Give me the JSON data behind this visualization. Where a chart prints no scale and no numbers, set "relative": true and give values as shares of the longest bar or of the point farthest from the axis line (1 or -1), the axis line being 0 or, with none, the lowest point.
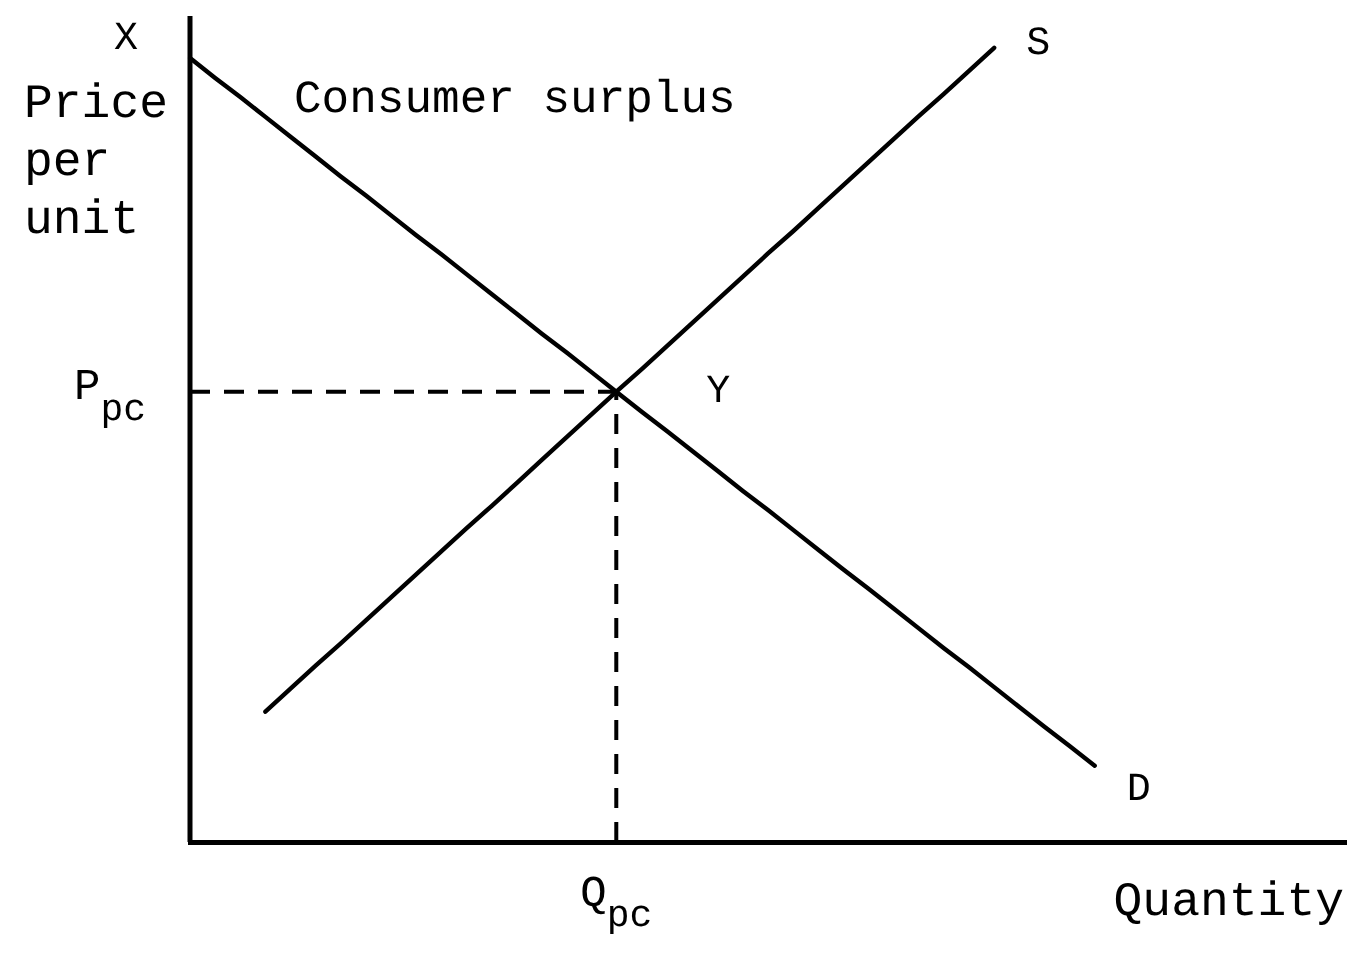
{
  "chart_data": {
    "type": "line",
    "relative": true,
    "xlabel": "Quantity",
    "ylabel": "Price per unit",
    "marker": "none",
    "line_style": "solid",
    "categories": [
      null,
      null,
      null,
      null,
      null,
      null,
      null,
      null,
      null,
      null,
      null,
      null,
      null,
      null,
      null,
      null,
      null,
      null,
      null,
      null,
      null,
      null,
      null,
      null,
      null,
      null,
      null,
      null,
      null,
      null,
      null,
      null,
      null,
      null,
      null,
      null,
      null,
      null,
      null,
      null,
      null,
      null,
      null,
      null,
      null,
      null,
      null
    ],
    "series": [
      {
        "name": "D",
        "color": "#000000",
        "values": [
          0.987,
          0.962,
          0.938,
          0.913,
          0.888,
          0.863,
          0.838,
          0.814,
          0.789,
          0.764,
          0.74,
          0.715,
          0.69,
          0.665,
          0.64,
          0.616,
          0.591,
          0.566,
          0.541,
          0.517,
          0.492,
          0.467,
          0.442,
          0.418,
          0.393,
          0.368,
          0.343,
          0.319,
          0.294,
          0.269,
          0.244,
          0.22,
          0.195,
          0.17,
          0.145,
          0.121,
          0.096,
          null,
          null,
          null,
          null,
          null,
          null,
          null,
          null,
          null,
          null
        ]
      },
      {
        "name": "S",
        "color": "#000000",
        "values": [
          null,
          null,
          null,
          0.164,
          0.193,
          0.222,
          0.25,
          0.279,
          0.308,
          0.337,
          0.366,
          0.395,
          0.423,
          0.452,
          0.481,
          0.51,
          0.539,
          0.568,
          0.596,
          0.625,
          0.654,
          0.683,
          0.712,
          0.741,
          0.769,
          0.798,
          0.827,
          0.856,
          0.885,
          0.914,
          0.942,
          0.971,
          1,
          null,
          null,
          null,
          null,
          null,
          null,
          null,
          null,
          null,
          null,
          null,
          null,
          null,
          null
        ]
      }
    ],
    "ref_lines": [
      {
        "axis": "y",
        "value": 0.567,
        "label": "P$_{pc}$",
        "color": "#000000",
        "line_style": "dashed"
      },
      {
        "axis": "x",
        "label": "Q$_{pc}$",
        "color": "#000000",
        "line_style": "dashed"
      }
    ],
    "annotations": [
      "Consumer surplus",
      "X",
      "Y"
    ]
  }
}
